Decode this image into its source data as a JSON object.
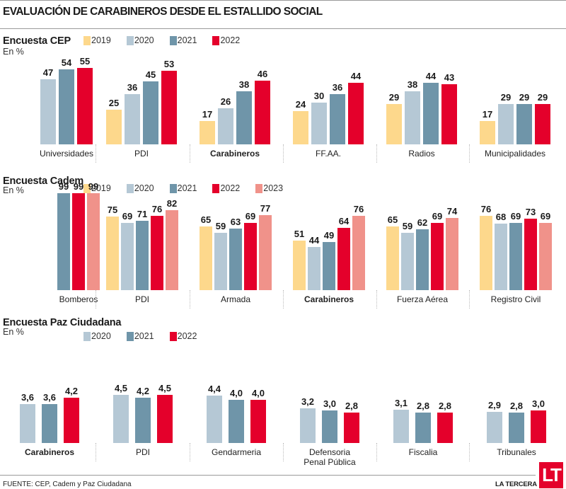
{
  "title": "EVALUACIÓN DE CARABINEROS DESDE EL ESTALLIDO SOCIAL",
  "colors": {
    "2019": "#fdd88c",
    "2020": "#b5c8d5",
    "2021": "#6f95a9",
    "2022": "#e4002b",
    "2023": "#f0928a"
  },
  "footer": {
    "source": "FUENTE: CEP, Cadem y Paz Ciudadana",
    "brand": "LA TERCERA",
    "logo": "LT"
  },
  "chart_data": [
    {
      "type": "bar",
      "title": "Encuesta CEP",
      "unit": "En %",
      "legend": [
        "2019",
        "2020",
        "2021",
        "2022"
      ],
      "categories": [
        "Universidades",
        "PDI",
        "Carabineros",
        "FF.AA.",
        "Radios",
        "Municipalidades"
      ],
      "bold_category": "Carabineros",
      "ylim": [
        0,
        60
      ],
      "series": [
        {
          "name": "2019",
          "values": [
            null,
            25,
            17,
            24,
            29,
            17
          ]
        },
        {
          "name": "2020",
          "values": [
            47,
            36,
            26,
            30,
            38,
            29
          ]
        },
        {
          "name": "2021",
          "values": [
            54,
            45,
            38,
            36,
            44,
            29
          ]
        },
        {
          "name": "2022",
          "values": [
            55,
            53,
            46,
            44,
            43,
            29
          ]
        }
      ],
      "labels": [
        [
          null,
          "25",
          "17",
          "24",
          "29",
          "17"
        ],
        [
          "47",
          "36",
          "26",
          "30",
          "38",
          "29"
        ],
        [
          "54",
          "45",
          "38",
          "36",
          "44",
          "29"
        ],
        [
          "55",
          "53",
          "46",
          "44",
          "43",
          "29"
        ]
      ]
    },
    {
      "type": "bar",
      "title": "Encuesta Cadem",
      "unit": "En %",
      "legend": [
        "2019",
        "2020",
        "2021",
        "2022",
        "2023"
      ],
      "categories": [
        "Bomberos",
        "PDI",
        "Armada",
        "Carabineros",
        "Fuerza Aérea",
        "Registro Civil"
      ],
      "bold_category": "Carabineros",
      "ylim": [
        0,
        105
      ],
      "series": [
        {
          "name": "2019",
          "values": [
            null,
            75,
            65,
            51,
            65,
            76
          ]
        },
        {
          "name": "2020",
          "values": [
            null,
            69,
            59,
            44,
            59,
            68
          ]
        },
        {
          "name": "2021",
          "values": [
            99,
            71,
            63,
            49,
            62,
            69
          ]
        },
        {
          "name": "2022",
          "values": [
            99,
            76,
            69,
            64,
            69,
            73
          ]
        },
        {
          "name": "2023",
          "values": [
            99,
            82,
            77,
            76,
            74,
            69
          ]
        }
      ],
      "labels": [
        [
          null,
          "75",
          "65",
          "51",
          "65",
          "76"
        ],
        [
          null,
          "69",
          "59",
          "44",
          "59",
          "68"
        ],
        [
          "99",
          "71",
          "63",
          "49",
          "62",
          "69"
        ],
        [
          "99",
          "76",
          "69",
          "64",
          "69",
          "73"
        ],
        [
          "99",
          "82",
          "77",
          "76",
          "74",
          "69"
        ]
      ]
    },
    {
      "type": "bar",
      "title": "Encuesta Paz Ciudadana",
      "unit": "En %",
      "legend": [
        "2020",
        "2021",
        "2022"
      ],
      "categories": [
        "Carabineros",
        "PDI",
        "Gendarmeria",
        "Defensoria Penal Pública",
        "Fiscalia",
        "Tribunales"
      ],
      "bold_category": "Carabineros",
      "ylim": [
        0,
        5
      ],
      "series": [
        {
          "name": "2020",
          "values": [
            3.6,
            4.5,
            4.4,
            3.2,
            3.1,
            2.9
          ]
        },
        {
          "name": "2021",
          "values": [
            3.6,
            4.2,
            4.0,
            3.0,
            2.8,
            2.8
          ]
        },
        {
          "name": "2022",
          "values": [
            4.2,
            4.5,
            4.0,
            2.8,
            2.8,
            3.0
          ]
        }
      ],
      "labels": [
        [
          "3,6",
          "4,5",
          "4,4",
          "3,2",
          "3,1",
          "2,9"
        ],
        [
          "3,6",
          "4,2",
          "4,0",
          "3,0",
          "2,8",
          "2,8"
        ],
        [
          "4,2",
          "4,5",
          "4,0",
          "2,8",
          "2,8",
          "3,0"
        ]
      ]
    }
  ]
}
